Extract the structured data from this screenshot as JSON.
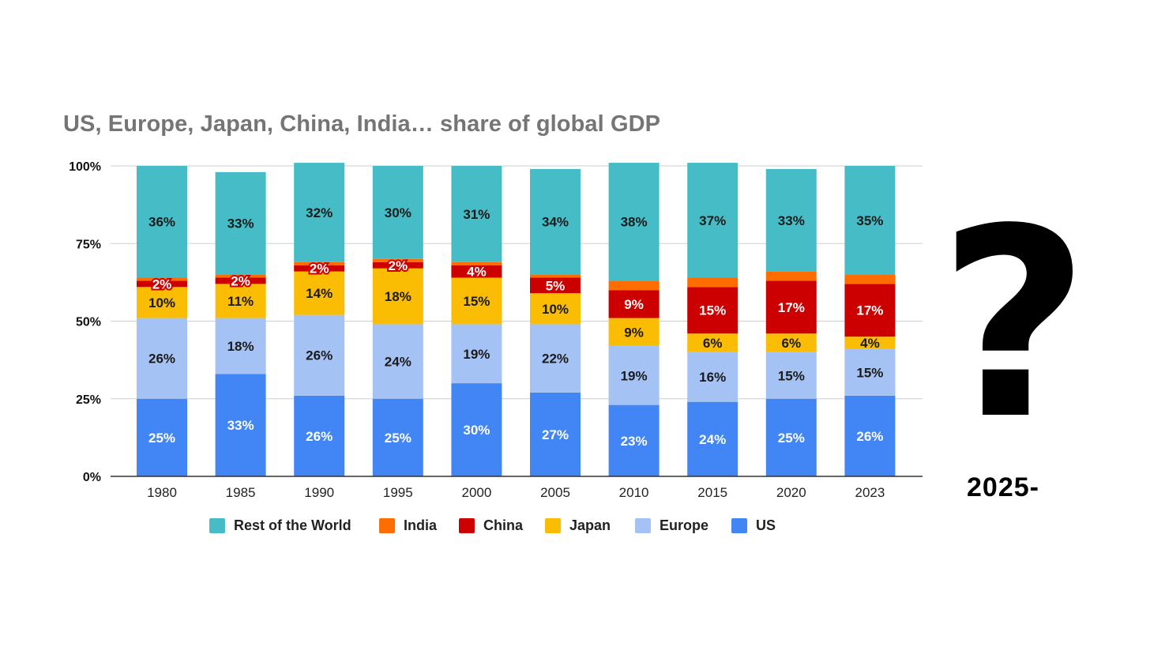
{
  "chart_data": {
    "type": "bar",
    "stacked": true,
    "title": "US, Europe, Japan, China, India… share of global GDP",
    "categories": [
      "1980",
      "1985",
      "1990",
      "1995",
      "2000",
      "2005",
      "2010",
      "2015",
      "2020",
      "2023"
    ],
    "y_ticks": [
      "0%",
      "25%",
      "50%",
      "75%",
      "100%"
    ],
    "ylim": [
      0,
      100
    ],
    "grid": true,
    "legend_position": "bottom",
    "series": [
      {
        "name": "US",
        "color": "#4285f4",
        "label_color": "#ffffff",
        "values": [
          25,
          33,
          26,
          25,
          30,
          27,
          23,
          24,
          25,
          26
        ],
        "labels": [
          "25%",
          "33%",
          "26%",
          "25%",
          "30%",
          "27%",
          "23%",
          "24%",
          "25%",
          "26%"
        ]
      },
      {
        "name": "Europe",
        "color": "#a4c2f4",
        "label_color": "#1a1a1a",
        "values": [
          26,
          18,
          26,
          24,
          19,
          22,
          19,
          16,
          15,
          15
        ],
        "labels": [
          "26%",
          "18%",
          "26%",
          "24%",
          "19%",
          "22%",
          "19%",
          "16%",
          "15%",
          "15%"
        ]
      },
      {
        "name": "Japan",
        "color": "#fbbc04",
        "label_color": "#1a1a1a",
        "values": [
          10,
          11,
          14,
          18,
          15,
          10,
          9,
          6,
          6,
          4
        ],
        "labels": [
          "10%",
          "11%",
          "14%",
          "18%",
          "15%",
          "10%",
          "9%",
          "6%",
          "6%",
          "4%"
        ]
      },
      {
        "name": "China",
        "color": "#cc0000",
        "label_color": "#ffffff",
        "values": [
          2,
          2,
          2,
          2,
          4,
          5,
          9,
          15,
          17,
          17
        ],
        "labels": [
          "2%",
          "2%",
          "2%",
          "2%",
          "4%",
          "5%",
          "9%",
          "15%",
          "17%",
          "17%"
        ]
      },
      {
        "name": "India",
        "color": "#ff6d01",
        "label_color": "#ffffff",
        "values": [
          1,
          1,
          1,
          1,
          1,
          1,
          3,
          3,
          3,
          3
        ],
        "labels": []
      },
      {
        "name": "Rest of the World",
        "color": "#46bdc6",
        "label_color": "#1a1a1a",
        "values": [
          36,
          33,
          32,
          30,
          31,
          34,
          38,
          37,
          33,
          35
        ],
        "labels": [
          "36%",
          "33%",
          "32%",
          "30%",
          "31%",
          "34%",
          "38%",
          "37%",
          "33%",
          "35%"
        ]
      }
    ],
    "legend_order": [
      "Rest of the World",
      "India",
      "China",
      "Japan",
      "Europe",
      "US"
    ]
  },
  "annotation": {
    "question_mark": "?",
    "future_year": "2025-"
  }
}
